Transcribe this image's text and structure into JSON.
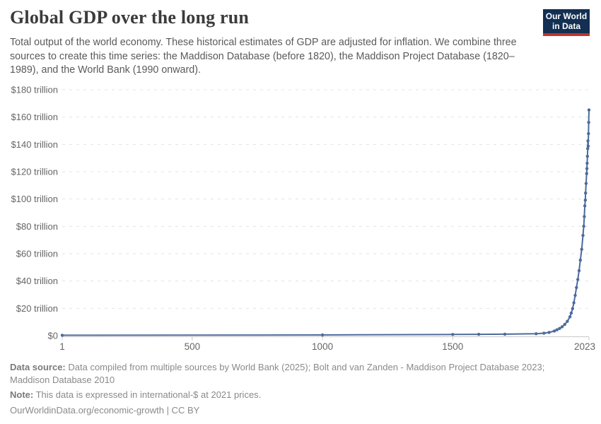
{
  "header": {
    "title": "Global GDP over the long run",
    "subtitle": "Total output of the world economy. These historical estimates of GDP are adjusted for inflation. We combine three sources to create this time series: the Maddison Database (before 1820), the Maddison Project Database (1820–1989), and the World Bank (1990 onward).",
    "logo": {
      "line1": "Our World",
      "line2": "in Data"
    }
  },
  "chart_data": {
    "type": "line",
    "title": "Global GDP over the long run",
    "xlabel": "",
    "ylabel": "",
    "unit": "trillion international-$ at 2021 prices",
    "xlim": [
      1,
      2023
    ],
    "ylim": [
      0,
      180
    ],
    "grid": "horizontal-dashed",
    "legend": "none",
    "y_ticks": [
      {
        "value": 180,
        "label": "$180 trillion"
      },
      {
        "value": 160,
        "label": "$160 trillion"
      },
      {
        "value": 140,
        "label": "$140 trillion"
      },
      {
        "value": 120,
        "label": "$120 trillion"
      },
      {
        "value": 100,
        "label": "$100 trillion"
      },
      {
        "value": 80,
        "label": "$80 trillion"
      },
      {
        "value": 60,
        "label": "$60 trillion"
      },
      {
        "value": 40,
        "label": "$40 trillion"
      },
      {
        "value": 20,
        "label": "$20 trillion"
      },
      {
        "value": 0,
        "label": "$0"
      }
    ],
    "x_ticks": [
      {
        "value": 1,
        "label": "1"
      },
      {
        "value": 500,
        "label": "500"
      },
      {
        "value": 1000,
        "label": "1000"
      },
      {
        "value": 1500,
        "label": "1500"
      },
      {
        "value": 2023,
        "label": "2023"
      }
    ],
    "series": [
      {
        "name": "World GDP (trillion international-$, 2021 prices)",
        "points": [
          [
            1,
            0.3
          ],
          [
            1000,
            0.5
          ],
          [
            1500,
            0.9
          ],
          [
            1600,
            1.0
          ],
          [
            1700,
            1.1
          ],
          [
            1820,
            1.4
          ],
          [
            1850,
            1.8
          ],
          [
            1870,
            2.4
          ],
          [
            1890,
            3.4
          ],
          [
            1900,
            4.3
          ],
          [
            1910,
            5.3
          ],
          [
            1920,
            6.5
          ],
          [
            1930,
            8.2
          ],
          [
            1940,
            10.5
          ],
          [
            1950,
            13.8
          ],
          [
            1955,
            16.5
          ],
          [
            1960,
            19.8
          ],
          [
            1965,
            24.1
          ],
          [
            1970,
            29.5
          ],
          [
            1975,
            35.2
          ],
          [
            1980,
            41.1
          ],
          [
            1985,
            47.6
          ],
          [
            1990,
            55.3
          ],
          [
            1995,
            63.2
          ],
          [
            2000,
            73.4
          ],
          [
            2003,
            80.1
          ],
          [
            2005,
            87.2
          ],
          [
            2007,
            95.0
          ],
          [
            2009,
            99.2
          ],
          [
            2010,
            104.4
          ],
          [
            2012,
            111.4
          ],
          [
            2014,
            118.6
          ],
          [
            2015,
            122.3
          ],
          [
            2016,
            126.2
          ],
          [
            2017,
            131.3
          ],
          [
            2018,
            136.9
          ],
          [
            2019,
            142.6
          ],
          [
            2020,
            138.7
          ],
          [
            2021,
            147.9
          ],
          [
            2022,
            156.1
          ],
          [
            2023,
            165.2
          ]
        ]
      }
    ]
  },
  "footer": {
    "data_source_label": "Data source:",
    "data_source_text": "Data compiled from multiple sources by World Bank (2025); Bolt and van Zanden - Maddison Project Database 2023; Maddison Database 2010",
    "note_label": "Note:",
    "note_text": "This data is expressed in international-$ at 2021 prices.",
    "citation": "OurWorldinData.org/economic-growth | CC BY"
  },
  "colors": {
    "title": "#3b3b3b",
    "subtitle": "#5a5a5a",
    "axis_label": "#666666",
    "grid": "#e3e3e3",
    "axis_line": "#c9c9c9",
    "line": "#4c6a9c",
    "footer": "#8a8a8a",
    "logo_bg": "#132f52",
    "logo_accent": "#c1332d"
  }
}
